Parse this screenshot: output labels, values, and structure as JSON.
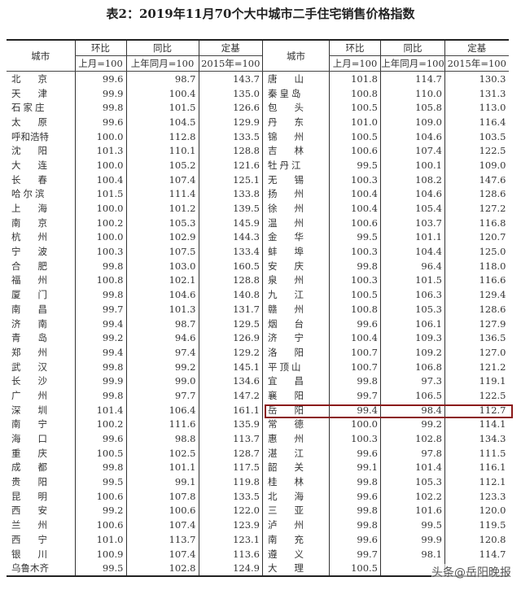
{
  "title": "表2：2019年11月70个大中城市二手住宅销售价格指数",
  "headers": {
    "city": "城市",
    "mom": "环比",
    "yoy": "同比",
    "fixed": "定基",
    "mom_base": "上月=100",
    "yoy_base": "上年同月=100",
    "fixed_base": "2015年=100"
  },
  "left_rows": [
    [
      "北京",
      "99.6",
      "98.7",
      "143.7"
    ],
    [
      "天津",
      "99.9",
      "100.4",
      "135.0"
    ],
    [
      "石家庄",
      "99.8",
      "101.5",
      "126.6"
    ],
    [
      "太原",
      "99.6",
      "104.5",
      "129.9"
    ],
    [
      "呼和浩特",
      "100.0",
      "112.8",
      "133.5"
    ],
    [
      "沈阳",
      "101.3",
      "110.1",
      "128.8"
    ],
    [
      "大连",
      "100.0",
      "105.2",
      "121.6"
    ],
    [
      "长春",
      "100.4",
      "107.4",
      "125.1"
    ],
    [
      "哈尔滨",
      "101.5",
      "111.4",
      "133.8"
    ],
    [
      "上海",
      "100.0",
      "101.2",
      "139.5"
    ],
    [
      "南京",
      "100.2",
      "105.3",
      "145.9"
    ],
    [
      "杭州",
      "100.0",
      "102.9",
      "144.3"
    ],
    [
      "宁波",
      "100.3",
      "107.5",
      "133.4"
    ],
    [
      "合肥",
      "99.8",
      "103.0",
      "160.5"
    ],
    [
      "福州",
      "100.8",
      "102.1",
      "128.8"
    ],
    [
      "厦门",
      "99.8",
      "104.6",
      "140.8"
    ],
    [
      "南昌",
      "99.7",
      "101.3",
      "131.7"
    ],
    [
      "济南",
      "99.4",
      "98.7",
      "129.5"
    ],
    [
      "青岛",
      "99.2",
      "94.6",
      "126.9"
    ],
    [
      "郑州",
      "99.4",
      "97.4",
      "129.2"
    ],
    [
      "武汉",
      "99.8",
      "99.2",
      "145.1"
    ],
    [
      "长沙",
      "99.9",
      "99.0",
      "134.6"
    ],
    [
      "广州",
      "99.8",
      "97.7",
      "147.2"
    ],
    [
      "深圳",
      "101.4",
      "106.4",
      "161.1"
    ],
    [
      "南宁",
      "100.2",
      "111.6",
      "135.9"
    ],
    [
      "海口",
      "99.6",
      "98.8",
      "113.7"
    ],
    [
      "重庆",
      "100.5",
      "102.5",
      "128.7"
    ],
    [
      "成都",
      "99.8",
      "101.1",
      "117.5"
    ],
    [
      "贵阳",
      "99.5",
      "99.1",
      "119.8"
    ],
    [
      "昆明",
      "100.6",
      "107.8",
      "133.5"
    ],
    [
      "西安",
      "99.2",
      "100.6",
      "122.0"
    ],
    [
      "兰州",
      "100.6",
      "107.4",
      "123.9"
    ],
    [
      "西宁",
      "101.0",
      "113.7",
      "123.1"
    ],
    [
      "银川",
      "100.9",
      "107.4",
      "113.6"
    ],
    [
      "乌鲁木齐",
      "99.5",
      "102.8",
      "124.9"
    ]
  ],
  "right_rows": [
    [
      "唐山",
      "101.8",
      "114.7",
      "130.3"
    ],
    [
      "秦皇岛",
      "100.8",
      "110.0",
      "131.3"
    ],
    [
      "包头",
      "100.5",
      "105.8",
      "113.0"
    ],
    [
      "丹东",
      "101.0",
      "109.0",
      "116.4"
    ],
    [
      "锦州",
      "100.5",
      "104.6",
      "103.5"
    ],
    [
      "吉林",
      "100.6",
      "107.4",
      "122.5"
    ],
    [
      "牡丹江",
      "99.5",
      "100.1",
      "109.0"
    ],
    [
      "无锡",
      "100.3",
      "108.2",
      "147.6"
    ],
    [
      "扬州",
      "100.4",
      "104.6",
      "128.6"
    ],
    [
      "徐州",
      "100.4",
      "105.4",
      "127.2"
    ],
    [
      "温州",
      "100.6",
      "103.7",
      "116.8"
    ],
    [
      "金华",
      "99.5",
      "101.1",
      "120.7"
    ],
    [
      "蚌埠",
      "100.3",
      "104.4",
      "125.0"
    ],
    [
      "安庆",
      "99.8",
      "96.4",
      "118.0"
    ],
    [
      "泉州",
      "100.3",
      "101.5",
      "116.6"
    ],
    [
      "九江",
      "100.5",
      "106.3",
      "129.4"
    ],
    [
      "赣州",
      "100.8",
      "105.3",
      "128.6"
    ],
    [
      "烟台",
      "99.6",
      "106.1",
      "127.9"
    ],
    [
      "济宁",
      "100.4",
      "109.3",
      "136.5"
    ],
    [
      "洛阳",
      "100.7",
      "109.2",
      "127.0"
    ],
    [
      "平顶山",
      "100.7",
      "106.8",
      "121.2"
    ],
    [
      "宜昌",
      "99.8",
      "97.3",
      "119.1"
    ],
    [
      "襄阳",
      "99.7",
      "106.5",
      "122.5"
    ],
    [
      "岳阳",
      "99.4",
      "98.4",
      "112.7"
    ],
    [
      "常德",
      "100.0",
      "99.2",
      "114.1"
    ],
    [
      "惠州",
      "100.3",
      "102.8",
      "134.3"
    ],
    [
      "湛江",
      "99.6",
      "97.8",
      "111.5"
    ],
    [
      "韶关",
      "99.1",
      "101.4",
      "116.1"
    ],
    [
      "桂林",
      "99.8",
      "105.3",
      "112.1"
    ],
    [
      "北海",
      "99.6",
      "102.2",
      "123.3"
    ],
    [
      "三亚",
      "99.8",
      "101.6",
      "120.0"
    ],
    [
      "泸州",
      "99.8",
      "99.5",
      "119.5"
    ],
    [
      "南充",
      "99.6",
      "99.9",
      "120.8"
    ],
    [
      "遵义",
      "99.7",
      "98.1",
      "114.7"
    ],
    [
      "大理",
      "100.5",
      "",
      ""
    ]
  ],
  "highlight_city": "岳阳",
  "highlight_color": "#8b1a1a",
  "watermark": "头条@岳阳晚报"
}
